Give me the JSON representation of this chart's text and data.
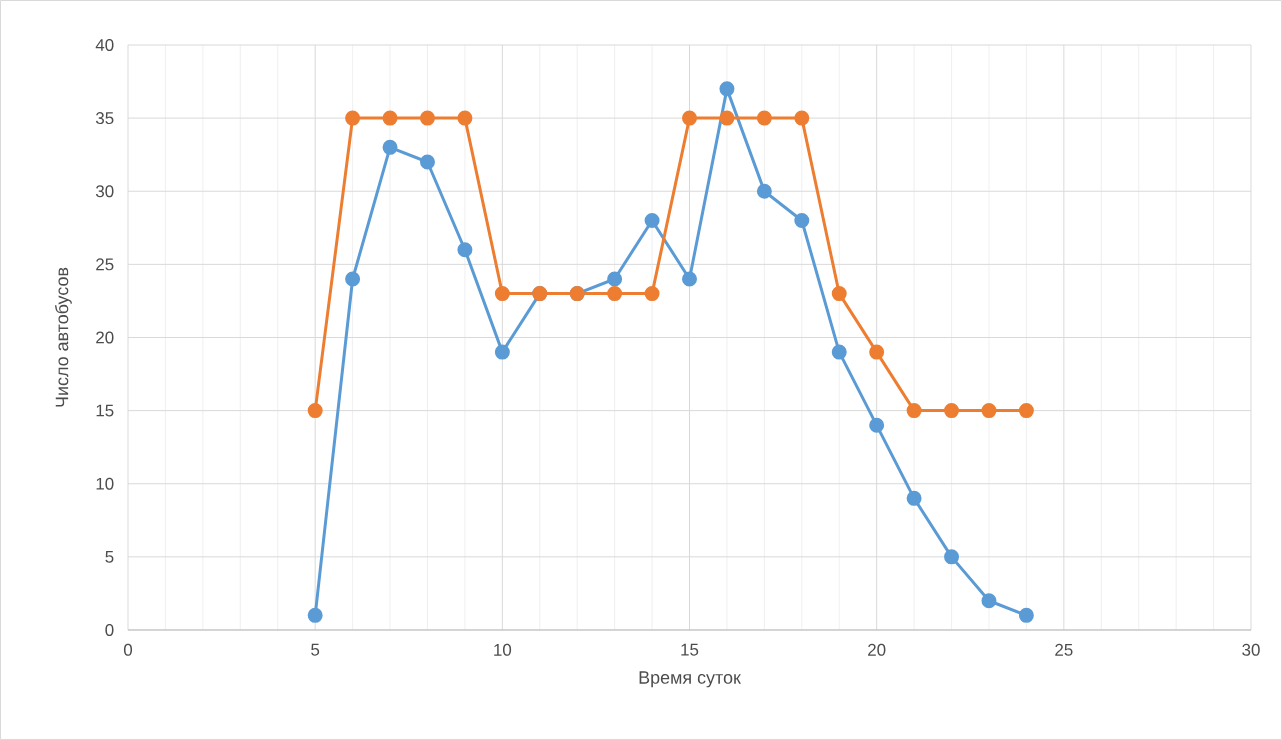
{
  "chart_data": {
    "type": "line",
    "xlabel": "Время суток",
    "ylabel": "Число автобусов",
    "x": [
      5,
      6,
      7,
      8,
      9,
      10,
      11,
      12,
      13,
      14,
      15,
      16,
      17,
      18,
      19,
      20,
      21,
      22,
      23,
      24
    ],
    "series": [
      {
        "color": "#5b9bd5",
        "values": [
          1,
          24,
          33,
          32,
          26,
          19,
          23,
          23,
          24,
          28,
          24,
          37,
          30,
          28,
          19,
          14,
          9,
          5,
          2,
          1
        ]
      },
      {
        "color": "#ed7d31",
        "values": [
          15,
          35,
          35,
          35,
          35,
          23,
          23,
          23,
          23,
          23,
          35,
          35,
          35,
          35,
          23,
          19,
          15,
          15,
          15,
          15
        ]
      }
    ],
    "xlim": [
      0,
      30
    ],
    "xticks": [
      0,
      5,
      10,
      15,
      20,
      25,
      30
    ],
    "ylim": [
      0,
      40
    ],
    "yticks": [
      0,
      5,
      10,
      15,
      20,
      25,
      30,
      35,
      40
    ],
    "grid": true,
    "marker": "circle",
    "line_style": "solid",
    "legend": false
  }
}
